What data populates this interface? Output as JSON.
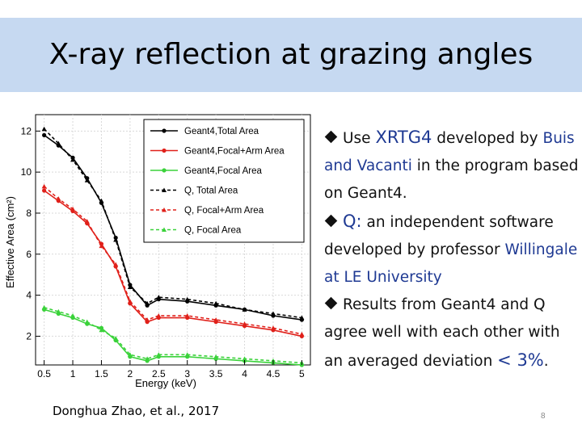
{
  "slide": {
    "title": "X-ray reflection at grazing angles",
    "citation": "Donghua Zhao, et al., 2017",
    "page_number": "8",
    "bullets": [
      {
        "pre": "Use ",
        "em": "XRTG4",
        "post": " developed by ",
        "blue": "Buis and Vacanti",
        "tail": " in the program based on Geant4."
      },
      {
        "em": "Q:",
        "post": " an independent software developed by professor ",
        "blue": "Willingale at LE University"
      },
      {
        "pre": "Results from Geant4 and Q agree well with each other with an averaged deviation ",
        "em": "< 3%",
        "tail": "."
      }
    ]
  },
  "chart_data": {
    "type": "line",
    "xlabel": "Energy (keV)",
    "ylabel": "Effective Area (cm²)",
    "xlim": [
      0.35,
      5.15
    ],
    "ylim": [
      0.6,
      12.8
    ],
    "xticks": [
      "0.5",
      "1",
      "1.5",
      "2",
      "2.5",
      "3",
      "3.5",
      "4",
      "4.5",
      "5"
    ],
    "yticks": [
      "2",
      "4",
      "6",
      "8",
      "10",
      "12"
    ],
    "legend_position": "top-right",
    "series": [
      {
        "name": "Geant4,Total Area",
        "color": "#000000",
        "style": "solid",
        "x": [
          0.5,
          0.75,
          1.0,
          1.25,
          1.5,
          1.75,
          2.0,
          2.3,
          2.5,
          3.0,
          3.5,
          4.0,
          4.5,
          5.0
        ],
        "y": [
          11.8,
          11.3,
          10.7,
          9.7,
          8.5,
          6.8,
          4.5,
          3.5,
          3.8,
          3.7,
          3.5,
          3.3,
          3.0,
          2.8
        ]
      },
      {
        "name": "Geant4,Focal+Arm Area",
        "color": "#e0201a",
        "style": "solid",
        "x": [
          0.5,
          0.75,
          1.0,
          1.25,
          1.5,
          1.75,
          2.0,
          2.3,
          2.5,
          3.0,
          3.5,
          4.0,
          4.5,
          5.0
        ],
        "y": [
          9.1,
          8.6,
          8.1,
          7.5,
          6.5,
          5.4,
          3.6,
          2.7,
          2.9,
          2.9,
          2.7,
          2.5,
          2.3,
          2.0
        ]
      },
      {
        "name": "Geant4,Focal Area",
        "color": "#3ad23a",
        "style": "solid",
        "x": [
          0.5,
          0.75,
          1.0,
          1.25,
          1.5,
          1.75,
          2.0,
          2.3,
          2.5,
          3.0,
          3.5,
          4.0,
          4.5,
          5.0
        ],
        "y": [
          3.3,
          3.1,
          2.9,
          2.6,
          2.4,
          1.8,
          1.0,
          0.8,
          1.0,
          1.0,
          0.9,
          0.8,
          0.7,
          0.6
        ]
      },
      {
        "name": "Q, Total Area",
        "color": "#000000",
        "style": "dashed",
        "x": [
          0.5,
          0.75,
          1.0,
          1.25,
          1.5,
          1.75,
          2.0,
          2.3,
          2.5,
          3.0,
          3.5,
          4.0,
          4.5,
          5.0
        ],
        "y": [
          12.1,
          11.4,
          10.6,
          9.6,
          8.6,
          6.7,
          4.4,
          3.6,
          3.9,
          3.8,
          3.6,
          3.3,
          3.1,
          2.9
        ]
      },
      {
        "name": "Q, Focal+Arm Area",
        "color": "#e0201a",
        "style": "dashed",
        "x": [
          0.5,
          0.75,
          1.0,
          1.25,
          1.5,
          1.75,
          2.0,
          2.3,
          2.5,
          3.0,
          3.5,
          4.0,
          4.5,
          5.0
        ],
        "y": [
          9.3,
          8.7,
          8.2,
          7.6,
          6.4,
          5.5,
          3.7,
          2.8,
          3.0,
          3.0,
          2.8,
          2.6,
          2.4,
          2.1
        ]
      },
      {
        "name": "Q, Focal Area",
        "color": "#3ad23a",
        "style": "dashed",
        "x": [
          0.5,
          0.75,
          1.0,
          1.25,
          1.5,
          1.75,
          2.0,
          2.3,
          2.5,
          3.0,
          3.5,
          4.0,
          4.5,
          5.0
        ],
        "y": [
          3.4,
          3.2,
          3.0,
          2.7,
          2.3,
          1.9,
          1.1,
          0.9,
          1.1,
          1.1,
          1.0,
          0.9,
          0.8,
          0.7
        ]
      }
    ]
  }
}
